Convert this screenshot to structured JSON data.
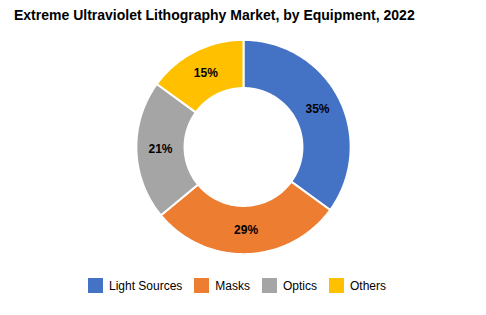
{
  "chart_data": {
    "type": "pie",
    "title": "Extreme Ultraviolet Lithography Market, by Equipment, 2022",
    "categories": [
      "Light Sources",
      "Masks",
      "Optics",
      "Others"
    ],
    "values": [
      35,
      29,
      21,
      15
    ],
    "value_labels": [
      "35%",
      "29%",
      "21%",
      "15%"
    ],
    "colors": [
      "#4472C4",
      "#ED7D31",
      "#A5A5A5",
      "#FFC000"
    ],
    "data_labels": true,
    "legend": "bottom"
  }
}
